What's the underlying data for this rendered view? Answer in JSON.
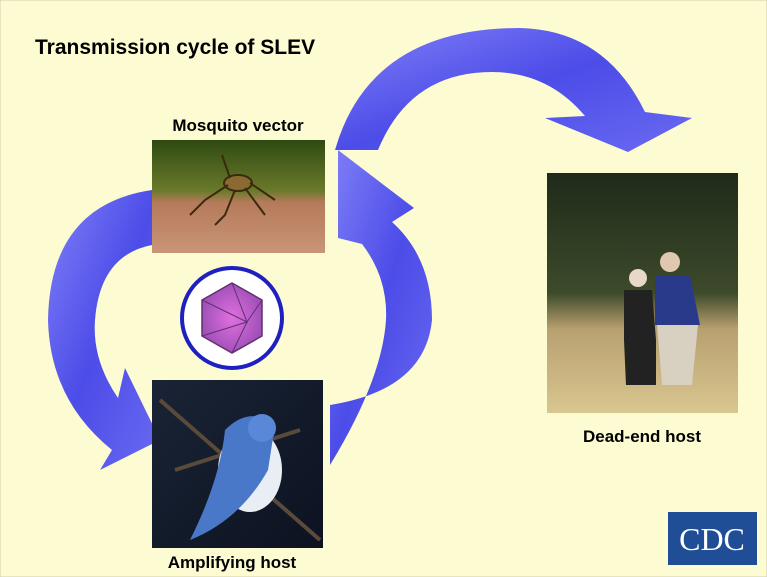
{
  "title": "Transmission cycle of SLEV",
  "nodes": [
    {
      "label": "Mosquito vector"
    },
    {
      "label": "Amplifying host"
    },
    {
      "label": "Dead-end host"
    }
  ],
  "logo": "CDC"
}
